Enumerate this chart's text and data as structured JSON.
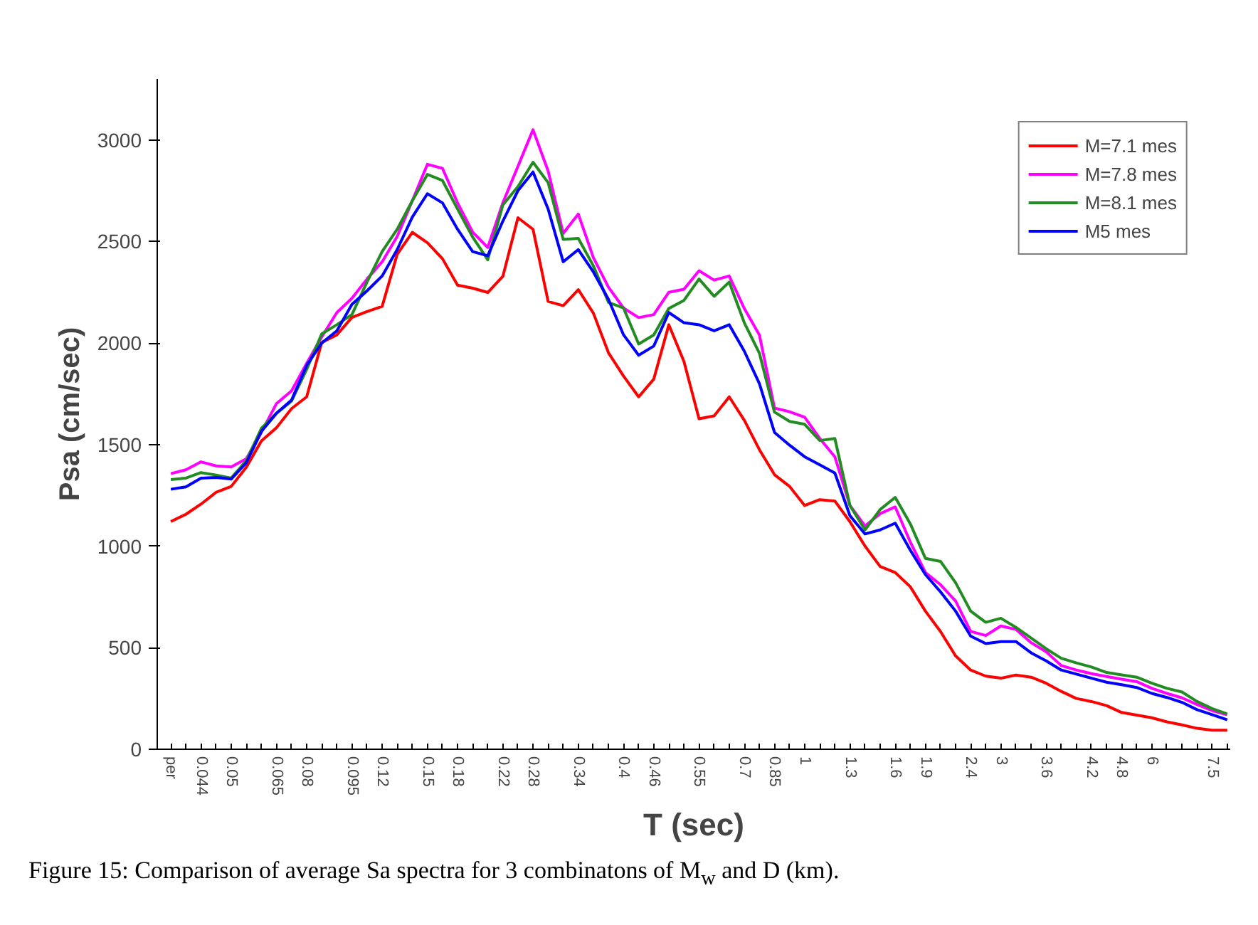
{
  "chart_data": {
    "type": "line",
    "xlabel": "T (sec)",
    "ylabel": "Psa (cm/sec)",
    "categories": [
      "per",
      null,
      "0.044",
      null,
      "0.05",
      null,
      null,
      "0.065",
      null,
      "0.08",
      null,
      null,
      "0.095",
      null,
      "0.12",
      null,
      null,
      "0.15",
      null,
      "0.18",
      null,
      null,
      "0.22",
      null,
      "0.28",
      null,
      null,
      "0.34",
      null,
      null,
      "0.4",
      null,
      "0.46",
      null,
      null,
      "0.55",
      null,
      null,
      "0.7",
      null,
      "0.85",
      null,
      "1",
      null,
      null,
      "1.3",
      null,
      null,
      "1.6",
      null,
      "1.9",
      null,
      null,
      "2.4",
      null,
      "3",
      null,
      null,
      "3.6",
      null,
      null,
      "4.2",
      null,
      "4.8",
      null,
      "6",
      null,
      null,
      null,
      "7.5",
      null
    ],
    "ylim": [
      0,
      3300
    ],
    "yticks": [
      0,
      500,
      1000,
      1500,
      2000,
      2500,
      3000
    ],
    "grid": false,
    "legend": "top right",
    "line_style": "solid",
    "marker": "none",
    "series": [
      {
        "name": "M=7.1 mes",
        "color": "#ff0000",
        "values": [
          1121,
          1157,
          1207,
          1265,
          1294,
          1388,
          1518,
          1583,
          1677,
          1735,
          2003,
          2040,
          2126,
          2155,
          2180,
          2437,
          2545,
          2494,
          2415,
          2285,
          2270,
          2249,
          2328,
          2617,
          2560,
          2205,
          2184,
          2263,
          2147,
          1952,
          1837,
          1735,
          1822,
          2090,
          1909,
          1627,
          1641,
          1735,
          1620,
          1475,
          1352,
          1294,
          1200,
          1229,
          1222,
          1120,
          1000,
          900,
          870,
          800,
          680,
          580,
          460,
          390,
          360,
          350,
          365,
          355,
          325,
          285,
          250,
          235,
          215,
          181,
          168,
          155,
          135,
          120,
          103,
          94,
          94
        ]
      },
      {
        "name": "M=7.8 mes",
        "color": "#ff00ff",
        "values": [
          1357,
          1376,
          1415,
          1395,
          1390,
          1430,
          1560,
          1702,
          1765,
          1900,
          2030,
          2150,
          2220,
          2315,
          2400,
          2525,
          2700,
          2880,
          2860,
          2690,
          2546,
          2470,
          2690,
          2870,
          3050,
          2847,
          2540,
          2635,
          2420,
          2275,
          2172,
          2125,
          2140,
          2250,
          2265,
          2356,
          2310,
          2330,
          2170,
          2040,
          1680,
          1662,
          1635,
          1530,
          1440,
          1200,
          1099,
          1160,
          1193,
          1020,
          870,
          810,
          730,
          580,
          560,
          607,
          590,
          525,
          480,
          412,
          390,
          372,
          358,
          345,
          333,
          300,
          275,
          253,
          220,
          190,
          170
        ]
      },
      {
        "name": "M=8.1 mes",
        "color": "#228b22",
        "values": [
          1328,
          1335,
          1362,
          1350,
          1335,
          1420,
          1580,
          1654,
          1714,
          1870,
          2045,
          2090,
          2140,
          2300,
          2450,
          2560,
          2700,
          2830,
          2800,
          2660,
          2522,
          2410,
          2680,
          2770,
          2890,
          2790,
          2510,
          2515,
          2380,
          2200,
          2172,
          1995,
          2040,
          2170,
          2210,
          2315,
          2230,
          2300,
          2100,
          1950,
          1660,
          1614,
          1600,
          1520,
          1530,
          1200,
          1080,
          1180,
          1240,
          1110,
          940,
          925,
          820,
          680,
          625,
          645,
          600,
          548,
          495,
          448,
          425,
          405,
          378,
          366,
          355,
          325,
          300,
          282,
          235,
          200,
          174
        ]
      },
      {
        "name": "M5 mes",
        "color": "#0000ff",
        "values": [
          1280,
          1292,
          1335,
          1338,
          1330,
          1410,
          1565,
          1654,
          1719,
          1890,
          2000,
          2060,
          2190,
          2257,
          2330,
          2460,
          2620,
          2735,
          2690,
          2560,
          2450,
          2430,
          2600,
          2750,
          2842,
          2660,
          2400,
          2460,
          2350,
          2215,
          2040,
          1940,
          1985,
          2150,
          2100,
          2090,
          2060,
          2090,
          1960,
          1800,
          1560,
          1497,
          1440,
          1400,
          1360,
          1150,
          1060,
          1080,
          1113,
          980,
          860,
          775,
          680,
          557,
          520,
          530,
          530,
          475,
          435,
          390,
          370,
          350,
          330,
          318,
          304,
          275,
          255,
          231,
          195,
          170,
          145
        ]
      }
    ],
    "annotations": [
      "Figure 15: Comparison of average Sa spectra for 3 combinatons of M$_{w}$ and D (km)."
    ]
  }
}
